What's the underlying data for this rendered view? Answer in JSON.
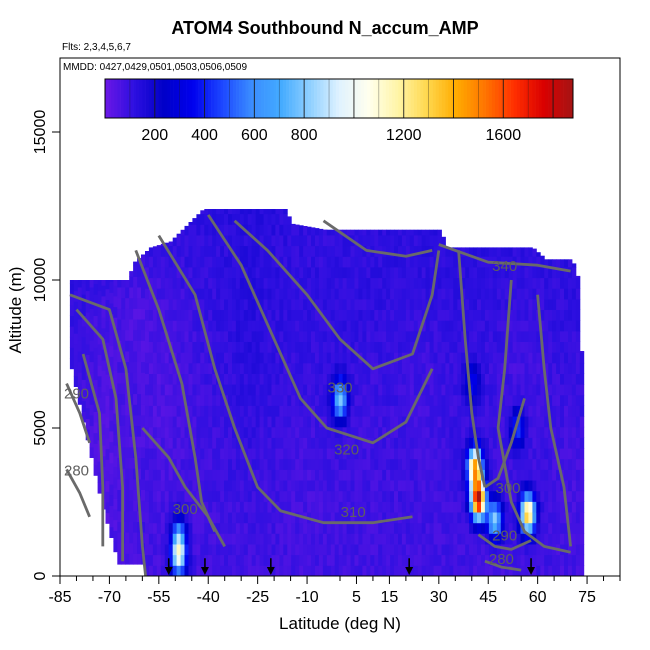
{
  "chart_data": {
    "type": "heatmap",
    "title": "ATOM4 Southbound N_accum_AMP",
    "flights_text": "Flts: 2,3,4,5,6,7",
    "dates_text": "MMDD: 0427,0429,0501,0503,0506,0509",
    "xlabel": "Latitude (deg N)",
    "ylabel": "Altitude (m)",
    "xlim": [
      -85,
      85
    ],
    "ylim": [
      0,
      17500
    ],
    "x_ticks": [
      -85,
      -70,
      -55,
      -40,
      -25,
      -10,
      5,
      15,
      30,
      45,
      60,
      75
    ],
    "x_minor_ticks": [
      -80,
      -75,
      -65,
      -60,
      -50,
      -45,
      -35,
      -30,
      -20,
      -15,
      0,
      10,
      20,
      25,
      35,
      40,
      50,
      55,
      65,
      70,
      80,
      85
    ],
    "y_ticks": [
      0,
      5000,
      10000,
      15000
    ],
    "colorbar": {
      "range": [
        0,
        1880
      ],
      "ticks": [
        200,
        400,
        600,
        800,
        1200,
        1600
      ],
      "colors": [
        "#6b17e6",
        "#2d0fe0",
        "#0000c8",
        "#0000ee",
        "#1c46ff",
        "#3a8cff",
        "#43aaff",
        "#8fd0ff",
        "#dff2ff",
        "#ffffee",
        "#fff5a8",
        "#ffd84f",
        "#ffac00",
        "#ff7400",
        "#ff2e00",
        "#d90000",
        "#a51414"
      ]
    },
    "contour_labels": [
      {
        "text": "340",
        "x": 50,
        "y": 10300
      },
      {
        "text": "330",
        "x": 0,
        "y": 6200
      },
      {
        "text": "320",
        "x": 2,
        "y": 4100
      },
      {
        "text": "310",
        "x": 4,
        "y": 2000
      },
      {
        "text": "300",
        "x": -47,
        "y": 2100
      },
      {
        "text": "300",
        "x": 51,
        "y": 2800
      },
      {
        "text": "290",
        "x": -80,
        "y": 6000
      },
      {
        "text": "290",
        "x": 50,
        "y": 1200
      },
      {
        "text": "280",
        "x": -80,
        "y": 3400
      },
      {
        "text": "280",
        "x": 49,
        "y": 400
      }
    ],
    "profile_markers_lat": [
      -52,
      -41,
      -21,
      21,
      58
    ],
    "hotspots": [
      {
        "lat": 42,
        "alt": 2600,
        "value": 1850
      },
      {
        "lat": 41,
        "alt": 3700,
        "value": 1400
      },
      {
        "lat": 57,
        "alt": 2100,
        "value": 1350
      },
      {
        "lat": 47,
        "alt": 1900,
        "value": 800
      },
      {
        "lat": 0,
        "alt": 6000,
        "value": 800
      },
      {
        "lat": -49,
        "alt": 700,
        "value": 1000
      },
      {
        "lat": -49,
        "alt": 1400,
        "value": 500
      },
      {
        "lat": 54,
        "alt": 5000,
        "value": 450
      },
      {
        "lat": 40,
        "alt": 6500,
        "value": 350
      }
    ]
  }
}
